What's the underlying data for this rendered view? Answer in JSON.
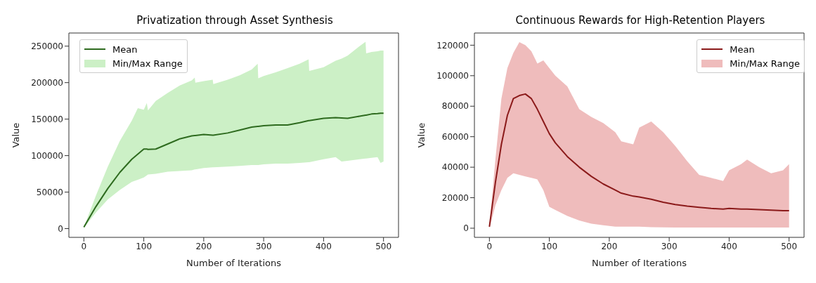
{
  "chart_data": [
    {
      "type": "line",
      "title": "Privatization through Asset Synthesis",
      "xlabel": "Number of Iterations",
      "ylabel": "Value",
      "xlim": [
        -25,
        525
      ],
      "xticks": [
        0,
        100,
        200,
        300,
        400,
        500
      ],
      "ylim": [
        -12000,
        268000
      ],
      "yticks": [
        0,
        50000,
        100000,
        150000,
        200000,
        250000
      ],
      "grid": false,
      "legend": "top left",
      "series": [
        {
          "name": "Mean",
          "type": "line",
          "color": "#2e6b1f",
          "x": [
            0,
            20,
            40,
            60,
            80,
            90,
            100,
            105,
            107,
            120,
            140,
            160,
            180,
            185,
            186,
            200,
            215,
            216,
            240,
            260,
            280,
            290,
            291,
            300,
            320,
            340,
            360,
            375,
            376,
            400,
            420,
            430,
            440,
            460,
            470,
            471,
            480,
            490,
            495,
            500
          ],
          "values": [
            2000,
            30000,
            55000,
            77000,
            95000,
            102000,
            109000,
            109000,
            108500,
            109000,
            116000,
            123000,
            127000,
            127500,
            127500,
            129000,
            128000,
            128000,
            131000,
            135000,
            139000,
            140000,
            140000,
            141000,
            142000,
            142000,
            145000,
            148000,
            148000,
            151000,
            152000,
            151500,
            151000,
            154000,
            155500,
            155500,
            157000,
            157500,
            158000,
            158000
          ],
          "upper": [
            2000,
            45000,
            85000,
            120000,
            148000,
            165000,
            163000,
            172000,
            162000,
            175000,
            186000,
            196000,
            203000,
            207000,
            200000,
            202000,
            204000,
            198000,
            204000,
            210000,
            218000,
            226000,
            206000,
            209000,
            214000,
            220000,
            226000,
            232000,
            216000,
            221000,
            230000,
            233000,
            237000,
            250000,
            256000,
            240000,
            242000,
            243000,
            244000,
            244000
          ],
          "lower": [
            1000,
            22000,
            40000,
            53000,
            64000,
            67000,
            70000,
            73000,
            74000,
            75000,
            78000,
            79000,
            80000,
            81000,
            81000,
            83000,
            84000,
            84000,
            85000,
            86000,
            87000,
            87000,
            87000,
            88000,
            89000,
            89000,
            90000,
            91000,
            91000,
            95000,
            98000,
            92000,
            93000,
            95000,
            96000,
            96000,
            97000,
            98000,
            90000,
            92000
          ]
        },
        {
          "name": "Min/Max Range",
          "type": "area",
          "color": "#ccf0c6"
        }
      ]
    },
    {
      "type": "line",
      "title": "Continuous Rewards for High-Retention Players",
      "xlabel": "Number of Iterations",
      "ylabel": "Value",
      "xlim": [
        -25,
        525
      ],
      "xticks": [
        0,
        100,
        200,
        300,
        400,
        500
      ],
      "ylim": [
        -6000,
        128000
      ],
      "yticks": [
        0,
        20000,
        40000,
        60000,
        80000,
        100000,
        120000
      ],
      "grid": false,
      "legend": "top right",
      "series": [
        {
          "name": "Mean",
          "type": "line",
          "color": "#8b1a1a",
          "x": [
            0,
            10,
            20,
            30,
            40,
            50,
            60,
            70,
            80,
            90,
            100,
            110,
            130,
            150,
            170,
            190,
            210,
            220,
            240,
            250,
            270,
            290,
            310,
            330,
            350,
            370,
            390,
            400,
            420,
            430,
            450,
            470,
            490,
            500
          ],
          "values": [
            1000,
            30000,
            55000,
            74000,
            85000,
            87000,
            88000,
            85000,
            78000,
            70000,
            62000,
            56000,
            47000,
            40000,
            34000,
            29000,
            25000,
            23000,
            21000,
            20500,
            19000,
            17000,
            15500,
            14500,
            13700,
            13000,
            12500,
            13000,
            12500,
            12500,
            12200,
            11800,
            11500,
            11500
          ],
          "upper": [
            1000,
            45000,
            85000,
            105000,
            115000,
            122000,
            120000,
            116000,
            108000,
            110000,
            105000,
            100000,
            93000,
            78000,
            73000,
            69000,
            63000,
            57000,
            55000,
            66000,
            70000,
            63000,
            54000,
            44000,
            35000,
            33000,
            31000,
            38000,
            42000,
            45000,
            40000,
            36000,
            38000,
            42000
          ],
          "lower": [
            0,
            15000,
            25000,
            33000,
            36000,
            35000,
            34000,
            33000,
            32000,
            25000,
            14000,
            12000,
            8000,
            5000,
            3000,
            2000,
            1000,
            1000,
            1000,
            1000,
            700,
            600,
            500,
            500,
            500,
            500,
            500,
            500,
            500,
            500,
            500,
            500,
            500,
            500
          ]
        },
        {
          "name": "Min/Max Range",
          "type": "area",
          "color": "#efbcbc"
        }
      ]
    }
  ]
}
